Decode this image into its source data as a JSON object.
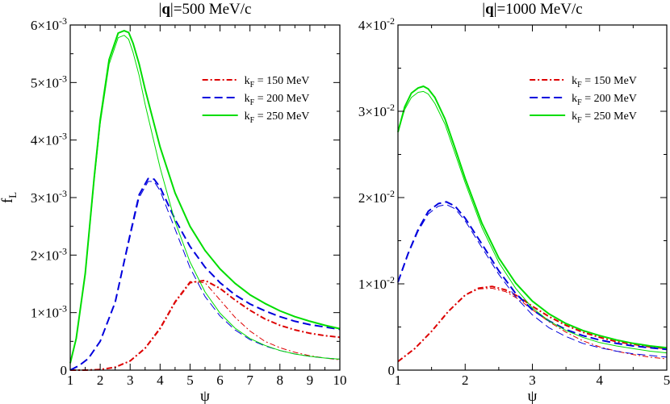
{
  "chart_data": [
    {
      "type": "line",
      "title_bold": "q",
      "title_rest": "=500 MeV/c",
      "xlabel": "ψ",
      "ylabel_main": "f",
      "ylabel_sub": "L",
      "xlim": [
        1,
        10
      ],
      "ylim": [
        0,
        0.006
      ],
      "xticks": [
        1,
        2,
        3,
        4,
        5,
        6,
        7,
        8,
        9,
        10
      ],
      "yticks": [
        {
          "value": 0,
          "mant": "0",
          "exp": ""
        },
        {
          "value": 0.001,
          "mant": "1×10",
          "exp": "-3"
        },
        {
          "value": 0.002,
          "mant": "2×10",
          "exp": "-3"
        },
        {
          "value": 0.003,
          "mant": "3×10",
          "exp": "-3"
        },
        {
          "value": 0.004,
          "mant": "4×10",
          "exp": "-3"
        },
        {
          "value": 0.005,
          "mant": "5×10",
          "exp": "-3"
        },
        {
          "value": 0.006,
          "mant": "6×10",
          "exp": "-3"
        }
      ],
      "legend": [
        {
          "main": "k",
          "sub": "F",
          "rest": " = 150 MeV",
          "color": "#dd0000",
          "dash": "7,3,2,3"
        },
        {
          "main": "k",
          "sub": "F",
          "rest": " = 200 MeV",
          "color": "#0000dd",
          "dash": "10,5"
        },
        {
          "main": "k",
          "sub": "F",
          "rest": " = 250 MeV",
          "color": "#00dd00",
          "dash": ""
        }
      ],
      "series": [
        {
          "color": "#dd0000",
          "dash": "7,3,2,3",
          "width": 2,
          "x": [
            1,
            1.5,
            2,
            2.5,
            3,
            3.5,
            4,
            4.5,
            5,
            5.5,
            6,
            6.5,
            7,
            7.5,
            8,
            8.5,
            9,
            9.5,
            10
          ],
          "y": [
            0,
            0,
            1e-05,
            5e-05,
            0.00016,
            0.00038,
            0.00072,
            0.00118,
            0.00152,
            0.00156,
            0.00142,
            0.00122,
            0.00104,
            0.00089,
            0.00078,
            0.0007,
            0.00064,
            0.0006,
            0.00057
          ]
        },
        {
          "color": "#dd0000",
          "dash": "7,3,2,3",
          "width": 1,
          "x": [
            1,
            1.5,
            2,
            2.5,
            3,
            3.5,
            4,
            4.5,
            5,
            5.5,
            6,
            6.5,
            7,
            7.5,
            8,
            8.5,
            9,
            9.5,
            10
          ],
          "y": [
            0,
            0,
            1e-05,
            5e-05,
            0.00016,
            0.00039,
            0.00074,
            0.0012,
            0.00154,
            0.00152,
            0.00122,
            0.00092,
            0.00068,
            0.0005,
            0.00039,
            0.00031,
            0.00025,
            0.00021,
            0.00018
          ]
        },
        {
          "color": "#0000dd",
          "dash": "10,5",
          "width": 2,
          "x": [
            1,
            1.3,
            1.6,
            2,
            2.5,
            3,
            3.3,
            3.6,
            3.8,
            4,
            4.5,
            5,
            5.5,
            6,
            6.5,
            7,
            7.5,
            8,
            8.5,
            9,
            9.5,
            10
          ],
          "y": [
            0,
            8e-05,
            0.0002,
            0.0005,
            0.00118,
            0.00236,
            0.00305,
            0.00333,
            0.00332,
            0.00318,
            0.00262,
            0.00215,
            0.00179,
            0.00152,
            0.00131,
            0.00115,
            0.00103,
            0.00093,
            0.00085,
            0.00079,
            0.00075,
            0.00071
          ]
        },
        {
          "color": "#0000dd",
          "dash": "10,5",
          "width": 1,
          "x": [
            1,
            1.3,
            1.6,
            2,
            2.5,
            3,
            3.3,
            3.6,
            3.8,
            4,
            4.5,
            5,
            5.5,
            6,
            6.5,
            7,
            7.5,
            8,
            8.5,
            9,
            9.5,
            10
          ],
          "y": [
            0,
            8e-05,
            0.0002,
            0.0005,
            0.00118,
            0.00232,
            0.003,
            0.00328,
            0.00328,
            0.00312,
            0.00245,
            0.00178,
            0.00128,
            0.00094,
            0.0007,
            0.00053,
            0.00042,
            0.00034,
            0.00028,
            0.00024,
            0.00021,
            0.00019
          ]
        },
        {
          "color": "#00dd00",
          "dash": "",
          "width": 2,
          "x": [
            1,
            1.2,
            1.5,
            1.8,
            2,
            2.3,
            2.6,
            2.8,
            2.95,
            3.1,
            3.3,
            3.5,
            4,
            4.5,
            5,
            5.5,
            6,
            6.5,
            7,
            7.5,
            8,
            8.5,
            9,
            9.5,
            10
          ],
          "y": [
            0.00012,
            0.00055,
            0.00168,
            0.00335,
            0.00435,
            0.0054,
            0.00586,
            0.0059,
            0.00587,
            0.00568,
            0.00532,
            0.00488,
            0.00388,
            0.00308,
            0.0025,
            0.00208,
            0.00176,
            0.00151,
            0.00131,
            0.00116,
            0.00103,
            0.00093,
            0.00085,
            0.00078,
            0.00072
          ]
        },
        {
          "color": "#00dd00",
          "dash": "",
          "width": 1,
          "x": [
            1,
            1.2,
            1.5,
            1.8,
            2,
            2.3,
            2.6,
            2.8,
            2.95,
            3.1,
            3.3,
            3.5,
            4,
            4.5,
            5,
            5.5,
            6,
            6.5,
            7,
            7.5,
            8,
            8.5,
            9,
            9.5,
            10
          ],
          "y": [
            0.00012,
            0.00055,
            0.00166,
            0.0033,
            0.00428,
            0.00532,
            0.00578,
            0.00582,
            0.00575,
            0.00552,
            0.00512,
            0.00462,
            0.00352,
            0.00258,
            0.00188,
            0.00136,
            0.00099,
            0.00073,
            0.00055,
            0.00043,
            0.00034,
            0.00028,
            0.00024,
            0.00021,
            0.00019
          ]
        }
      ]
    },
    {
      "type": "line",
      "title_bold": "q",
      "title_rest": "=1000 MeV/c",
      "xlabel": "ψ",
      "xlim": [
        1,
        5
      ],
      "ylim": [
        0,
        0.04
      ],
      "xticks": [
        1,
        2,
        3,
        4,
        5
      ],
      "yticks": [
        {
          "value": 0,
          "mant": "0",
          "exp": ""
        },
        {
          "value": 0.01,
          "mant": "1×10",
          "exp": "-2"
        },
        {
          "value": 0.02,
          "mant": "2×10",
          "exp": "-2"
        },
        {
          "value": 0.03,
          "mant": "3×10",
          "exp": "-2"
        },
        {
          "value": 0.04,
          "mant": "4×10",
          "exp": "-2"
        }
      ],
      "legend": [
        {
          "main": "k",
          "sub": "F",
          "rest": " = 150 MeV",
          "color": "#dd0000",
          "dash": "7,3,2,3"
        },
        {
          "main": "k",
          "sub": "F",
          "rest": " = 200 MeV",
          "color": "#0000dd",
          "dash": "10,5"
        },
        {
          "main": "k",
          "sub": "F",
          "rest": " = 250 MeV",
          "color": "#00dd00",
          "dash": ""
        }
      ],
      "series": [
        {
          "color": "#dd0000",
          "dash": "7,3,2,3",
          "width": 2,
          "x": [
            1,
            1.25,
            1.5,
            1.75,
            2,
            2.2,
            2.4,
            2.6,
            2.8,
            3,
            3.25,
            3.5,
            3.75,
            4,
            4.25,
            4.5,
            4.75,
            5
          ],
          "y": [
            0.001,
            0.0025,
            0.0045,
            0.0068,
            0.0087,
            0.0095,
            0.0097,
            0.0093,
            0.0085,
            0.0074,
            0.0062,
            0.0052,
            0.0044,
            0.0038,
            0.0033,
            0.003,
            0.0027,
            0.0025
          ]
        },
        {
          "color": "#dd0000",
          "dash": "7,3,2,3",
          "width": 1,
          "x": [
            1,
            1.25,
            1.5,
            1.75,
            2,
            2.2,
            2.4,
            2.6,
            2.8,
            3,
            3.25,
            3.5,
            3.75,
            4,
            4.25,
            4.5,
            4.75,
            5
          ],
          "y": [
            0.001,
            0.0025,
            0.0045,
            0.0068,
            0.0087,
            0.0094,
            0.0095,
            0.0091,
            0.0082,
            0.007,
            0.0056,
            0.0044,
            0.0034,
            0.0027,
            0.0022,
            0.0018,
            0.0015,
            0.0013
          ]
        },
        {
          "color": "#0000dd",
          "dash": "10,5",
          "width": 2,
          "x": [
            1,
            1.15,
            1.3,
            1.45,
            1.6,
            1.72,
            1.85,
            2,
            2.25,
            2.5,
            2.75,
            3,
            3.25,
            3.5,
            3.75,
            4,
            4.25,
            4.5,
            4.75,
            5
          ],
          "y": [
            0.0102,
            0.0135,
            0.0163,
            0.0184,
            0.0193,
            0.0195,
            0.019,
            0.0176,
            0.0146,
            0.0115,
            0.0089,
            0.007,
            0.0057,
            0.0047,
            0.004,
            0.0035,
            0.0031,
            0.0028,
            0.0026,
            0.0024
          ]
        },
        {
          "color": "#0000dd",
          "dash": "10,5",
          "width": 1,
          "x": [
            1,
            1.15,
            1.3,
            1.45,
            1.6,
            1.72,
            1.85,
            2,
            2.25,
            2.5,
            2.75,
            3,
            3.25,
            3.5,
            3.75,
            4,
            4.25,
            4.5,
            4.75,
            5
          ],
          "y": [
            0.0102,
            0.0134,
            0.0161,
            0.0181,
            0.019,
            0.0192,
            0.0187,
            0.0173,
            0.0142,
            0.0111,
            0.0085,
            0.0064,
            0.0049,
            0.0039,
            0.0031,
            0.0026,
            0.0022,
            0.0019,
            0.0017,
            0.0015
          ]
        },
        {
          "color": "#00dd00",
          "dash": "",
          "width": 2,
          "x": [
            1,
            1.1,
            1.2,
            1.3,
            1.38,
            1.45,
            1.55,
            1.7,
            1.85,
            2,
            2.25,
            2.5,
            2.75,
            3,
            3.25,
            3.5,
            3.75,
            4,
            4.25,
            4.5,
            4.75,
            5
          ],
          "y": [
            0.0276,
            0.0305,
            0.0321,
            0.0327,
            0.0329,
            0.0326,
            0.0316,
            0.0291,
            0.0257,
            0.0222,
            0.017,
            0.013,
            0.0101,
            0.008,
            0.0065,
            0.0054,
            0.0046,
            0.004,
            0.0035,
            0.0031,
            0.0028,
            0.0026
          ]
        },
        {
          "color": "#00dd00",
          "dash": "",
          "width": 1,
          "x": [
            1,
            1.1,
            1.2,
            1.3,
            1.38,
            1.45,
            1.55,
            1.7,
            1.85,
            2,
            2.25,
            2.5,
            2.75,
            3,
            3.25,
            3.5,
            3.75,
            4,
            4.25,
            4.5,
            4.75,
            5
          ],
          "y": [
            0.0276,
            0.0302,
            0.0316,
            0.0322,
            0.0323,
            0.032,
            0.0309,
            0.0285,
            0.0251,
            0.0217,
            0.0165,
            0.0125,
            0.0095,
            0.0072,
            0.0057,
            0.0046,
            0.0038,
            0.0032,
            0.0028,
            0.0025,
            0.0022,
            0.002
          ]
        }
      ]
    }
  ]
}
